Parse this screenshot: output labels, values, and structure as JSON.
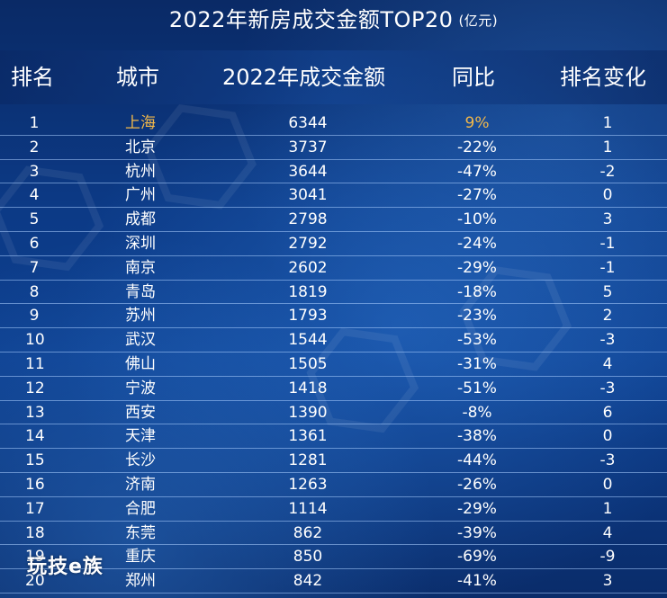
{
  "title": "2022年新房成交金额TOP20",
  "unit": "(亿元)",
  "columns": {
    "rank": "排名",
    "city": "城市",
    "amount": "2022年成交金额",
    "yoy": "同比",
    "change": "排名变化"
  },
  "highlight_color": "#f2b84a",
  "logo": "玩技e族",
  "rows": [
    {
      "rank": "1",
      "city": "上海",
      "amount": "6344",
      "yoy": "9%",
      "change": "1"
    },
    {
      "rank": "2",
      "city": "北京",
      "amount": "3737",
      "yoy": "-22%",
      "change": "1"
    },
    {
      "rank": "3",
      "city": "杭州",
      "amount": "3644",
      "yoy": "-47%",
      "change": "-2"
    },
    {
      "rank": "4",
      "city": "广州",
      "amount": "3041",
      "yoy": "-27%",
      "change": "0"
    },
    {
      "rank": "5",
      "city": "成都",
      "amount": "2798",
      "yoy": "-10%",
      "change": "3"
    },
    {
      "rank": "6",
      "city": "深圳",
      "amount": "2792",
      "yoy": "-24%",
      "change": "-1"
    },
    {
      "rank": "7",
      "city": "南京",
      "amount": "2602",
      "yoy": "-29%",
      "change": "-1"
    },
    {
      "rank": "8",
      "city": "青岛",
      "amount": "1819",
      "yoy": "-18%",
      "change": "5"
    },
    {
      "rank": "9",
      "city": "苏州",
      "amount": "1793",
      "yoy": "-23%",
      "change": "2"
    },
    {
      "rank": "10",
      "city": "武汉",
      "amount": "1544",
      "yoy": "-53%",
      "change": "-3"
    },
    {
      "rank": "11",
      "city": "佛山",
      "amount": "1505",
      "yoy": "-31%",
      "change": "4"
    },
    {
      "rank": "12",
      "city": "宁波",
      "amount": "1418",
      "yoy": "-51%",
      "change": "-3"
    },
    {
      "rank": "13",
      "city": "西安",
      "amount": "1390",
      "yoy": "-8%",
      "change": "6"
    },
    {
      "rank": "14",
      "city": "天津",
      "amount": "1361",
      "yoy": "-38%",
      "change": "0"
    },
    {
      "rank": "15",
      "city": "长沙",
      "amount": "1281",
      "yoy": "-44%",
      "change": "-3"
    },
    {
      "rank": "16",
      "city": "济南",
      "amount": "1263",
      "yoy": "-26%",
      "change": "0"
    },
    {
      "rank": "17",
      "city": "合肥",
      "amount": "1114",
      "yoy": "-29%",
      "change": "1"
    },
    {
      "rank": "18",
      "city": "东莞",
      "amount": "862",
      "yoy": "-39%",
      "change": "4"
    },
    {
      "rank": "19",
      "city": "重庆",
      "amount": "850",
      "yoy": "-69%",
      "change": "-9"
    },
    {
      "rank": "20",
      "city": "郑州",
      "amount": "842",
      "yoy": "-41%",
      "change": "3"
    }
  ]
}
